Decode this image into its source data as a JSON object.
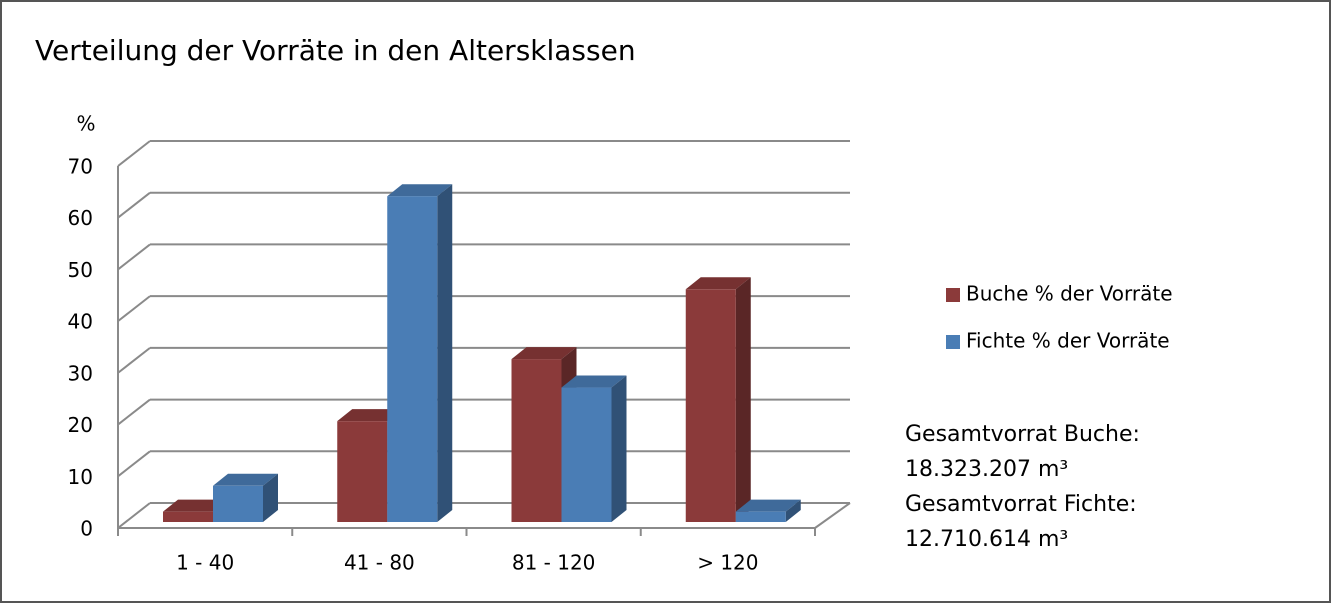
{
  "chart_data": {
    "type": "bar3d",
    "title": "Verteilung der Vorräte in den Altersklassen",
    "ylabel": "%",
    "categories": [
      "1 - 40",
      "41 - 80",
      "81 - 120",
      "> 120"
    ],
    "series": [
      {
        "name": "Buche % der Vorräte",
        "color": "#8b3a3a",
        "values": [
          2,
          19.5,
          31.5,
          45
        ]
      },
      {
        "name": "Fichte % der Vorräte",
        "color": "#4a7db5",
        "values": [
          7,
          63,
          26,
          2
        ]
      }
    ],
    "ylim": [
      0,
      70
    ],
    "yticks": [
      0,
      10,
      20,
      30,
      40,
      50,
      60,
      70
    ],
    "grid": true,
    "legend": "right",
    "annotations": [
      "Gesamtvorrat Buche:",
      "18.323.207 m³",
      "Gesamtvorrat Fichte:",
      "12.710.614 m³"
    ]
  }
}
